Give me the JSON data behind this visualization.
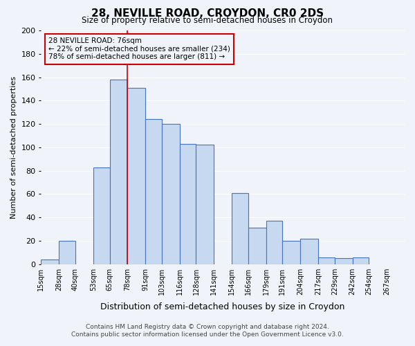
{
  "title": "28, NEVILLE ROAD, CROYDON, CR0 2DS",
  "subtitle": "Size of property relative to semi-detached houses in Croydon",
  "xlabel": "Distribution of semi-detached houses by size in Croydon",
  "ylabel": "Number of semi-detached properties",
  "bin_labels": [
    "15sqm",
    "28sqm",
    "40sqm",
    "53sqm",
    "65sqm",
    "78sqm",
    "91sqm",
    "103sqm",
    "116sqm",
    "128sqm",
    "141sqm",
    "154sqm",
    "166sqm",
    "179sqm",
    "191sqm",
    "204sqm",
    "217sqm",
    "229sqm",
    "242sqm",
    "254sqm",
    "267sqm"
  ],
  "bin_edges": [
    15,
    28,
    40,
    53,
    65,
    78,
    91,
    103,
    116,
    128,
    141,
    154,
    166,
    179,
    191,
    204,
    217,
    229,
    242,
    254,
    267
  ],
  "bar_values": [
    4,
    20,
    0,
    83,
    158,
    151,
    124,
    120,
    103,
    102,
    0,
    61,
    31,
    37,
    20,
    22,
    6,
    5,
    6,
    0,
    0
  ],
  "bar_color": "#c6d9f1",
  "bar_edge_color": "#4472c4",
  "property_size": 76,
  "property_line_color": "#cc0000",
  "ylim": [
    0,
    200
  ],
  "yticks": [
    0,
    20,
    40,
    60,
    80,
    100,
    120,
    140,
    160,
    180,
    200
  ],
  "annotation_box_text": "28 NEVILLE ROAD: 76sqm\n← 22% of semi-detached houses are smaller (234)\n78% of semi-detached houses are larger (811) →",
  "annotation_box_edge_color": "#cc0000",
  "footer_line1": "Contains HM Land Registry data © Crown copyright and database right 2024.",
  "footer_line2": "Contains public sector information licensed under the Open Government Licence v3.0.",
  "background_color": "#f0f4fa",
  "grid_color": "#ffffff"
}
